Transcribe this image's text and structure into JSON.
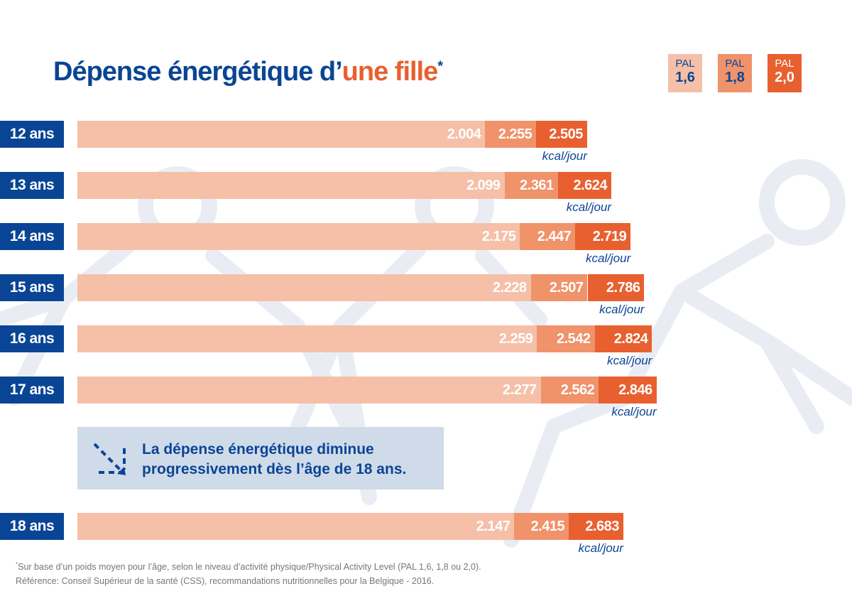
{
  "title": {
    "main": "Dépense énergétique d’",
    "highlight": "une fille",
    "asterisk": "*"
  },
  "legend": [
    {
      "label": "PAL",
      "value": "1,6",
      "color": "#f6bfa8"
    },
    {
      "label": "PAL",
      "value": "1,8",
      "color": "#f0926a"
    },
    {
      "label": "PAL",
      "value": "2,0",
      "color": "#e8602f"
    }
  ],
  "colors": {
    "primary": "#0a4595",
    "accent": "#e8602f",
    "note_bg": "#d0dbe9"
  },
  "chart_data": {
    "type": "bar",
    "stacked_overlay": true,
    "unit": "kcal/jour",
    "categories": [
      "12 ans",
      "13 ans",
      "14 ans",
      "15 ans",
      "16 ans",
      "17 ans",
      "18 ans"
    ],
    "series": [
      {
        "name": "PAL 1,6",
        "values": [
          2004,
          2099,
          2175,
          2228,
          2259,
          2277,
          2147
        ],
        "labels": [
          "2.004",
          "2.099",
          "2.175",
          "2.228",
          "2.259",
          "2.277",
          "2.147"
        ]
      },
      {
        "name": "PAL 1,8",
        "values": [
          2255,
          2361,
          2447,
          2507,
          2542,
          2562,
          2415
        ],
        "labels": [
          "2.255",
          "2.361",
          "2.447",
          "2.507",
          "2.542",
          "2.562",
          "2.415"
        ]
      },
      {
        "name": "PAL 2,0",
        "values": [
          2505,
          2624,
          2719,
          2786,
          2824,
          2846,
          2683
        ],
        "labels": [
          "2.505",
          "2.624",
          "2.719",
          "2.786",
          "2.824",
          "2.846",
          "2.683"
        ]
      }
    ]
  },
  "note": {
    "line1": "La dépense énergétique diminue",
    "line2": "progressivement dès l’âge de 18 ans."
  },
  "footnote": {
    "asterisk": "*",
    "line1": "Sur base d’un poids moyen pour l’âge, selon le niveau d’activité physique/Physical Activity Level (PAL 1,6, 1,8 ou 2,0).",
    "line2": "Référence: Conseil Supérieur de la santé (CSS), recommandations nutritionnelles pour la Belgique - 2016."
  }
}
